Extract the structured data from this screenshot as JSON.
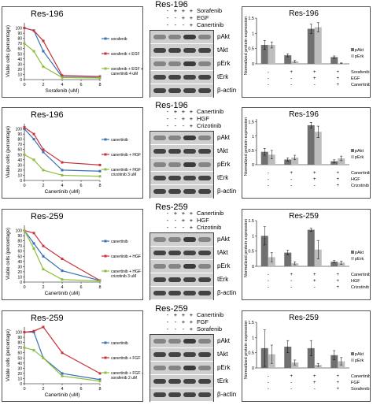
{
  "colors": {
    "blue": "#3a6fb5",
    "red": "#c8323a",
    "green": "#8cbf3f",
    "dark_bar": "#707070",
    "light_bar": "#bdbdbd"
  },
  "panels": [
    {
      "line_chart": {
        "title": "Res-196",
        "ylabel": "Viable cells (percentage)",
        "xlabel": "Sorafenib (uM)",
        "x": [
          0,
          1,
          2,
          4,
          8
        ],
        "yticks": [
          0,
          10,
          20,
          30,
          40,
          50,
          60,
          70,
          80,
          90,
          100
        ],
        "xticks": [
          0,
          2,
          4,
          6,
          8
        ],
        "series": [
          {
            "name": "sorafenib",
            "color": "blue",
            "values": [
              100,
              95,
              55,
              5,
              4
            ]
          },
          {
            "name": "sorafenib + EGF",
            "color": "red",
            "values": [
              100,
              95,
              75,
              8,
              6
            ]
          },
          {
            "name": "sorafenib + EGF + canertinib 4 uM",
            "color": "green",
            "values": [
              70,
              55,
              25,
              4,
              3
            ]
          }
        ]
      },
      "western": {
        "title": "Res-196",
        "conditions": [
          {
            "label": "Sorafenib",
            "signs": [
              "-",
              "+",
              "+",
              "+"
            ]
          },
          {
            "label": "EGF",
            "signs": [
              "-",
              "-",
              "+",
              "+"
            ]
          },
          {
            "label": "Canertinib",
            "signs": [
              "-",
              "-",
              "-",
              "+"
            ]
          }
        ],
        "blots": [
          "pAkt",
          "tAkt",
          "pErk",
          "tErk",
          "β-actin"
        ]
      },
      "bar_chart": {
        "title": "Res-196",
        "ylabel": "Normalized protein expression",
        "yticks": [
          "0",
          "0.5",
          "1",
          "1.5"
        ],
        "ymax": 1.5,
        "legend": [
          "pAkt",
          "pErk"
        ],
        "groups": [
          {
            "pAkt": 0.62,
            "pErk": 0.62,
            "err1": 0.15,
            "err2": 0.1
          },
          {
            "pAkt": 0.28,
            "pErk": 0.08,
            "err1": 0.05,
            "err2": 0.03
          },
          {
            "pAkt": 1.15,
            "pErk": 1.2,
            "err1": 0.15,
            "err2": 0.15
          },
          {
            "pAkt": 0.22,
            "pErk": 0.02,
            "err1": 0.04,
            "err2": 0.01
          }
        ],
        "conditions": [
          {
            "label": "Sorafenib",
            "signs": [
              "-",
              "+",
              "+",
              "+"
            ]
          },
          {
            "label": "EGF",
            "signs": [
              "-",
              "-",
              "+",
              "+"
            ]
          },
          {
            "label": "Canertinib",
            "signs": [
              "-",
              "-",
              "-",
              "+"
            ]
          }
        ]
      }
    },
    {
      "line_chart": {
        "title": "Res-196",
        "ylabel": "Viable cells (percentage)",
        "xlabel": "Canertinib (uM)",
        "x": [
          0,
          1,
          2,
          4,
          8
        ],
        "yticks": [
          0,
          10,
          20,
          30,
          40,
          50,
          60,
          70,
          80,
          90,
          100
        ],
        "xticks": [
          0,
          2,
          4,
          6,
          8
        ],
        "series": [
          {
            "name": "canertinib",
            "color": "blue",
            "values": [
              100,
              80,
              55,
              20,
              18
            ]
          },
          {
            "name": "canertinib + HGF",
            "color": "red",
            "values": [
              103,
              90,
              60,
              35,
              30
            ]
          },
          {
            "name": "canertinib + HGF + crizotinib 3 uM",
            "color": "green",
            "values": [
              50,
              40,
              20,
              10,
              8
            ]
          }
        ]
      },
      "western": {
        "title": "Res-196",
        "conditions": [
          {
            "label": "Canertinib",
            "signs": [
              "-",
              "+",
              "+",
              "+"
            ]
          },
          {
            "label": "HGF",
            "signs": [
              "-",
              "-",
              "+",
              "+"
            ]
          },
          {
            "label": "Crizotinib",
            "signs": [
              "-",
              "-",
              "-",
              "+"
            ]
          }
        ],
        "blots": [
          "pAkt",
          "tAkt",
          "pErk",
          "tErk",
          "β-actin"
        ]
      },
      "bar_chart": {
        "title": "Res-196",
        "ylabel": "Normalized protein expression",
        "yticks": [
          "0",
          "0.5",
          "1",
          "1.5"
        ],
        "ymax": 1.6,
        "legend": [
          "pAkt",
          "pErk"
        ],
        "groups": [
          {
            "pAkt": 0.45,
            "pErk": 0.35,
            "err1": 0.12,
            "err2": 0.15
          },
          {
            "pAkt": 0.18,
            "pErk": 0.25,
            "err1": 0.06,
            "err2": 0.08
          },
          {
            "pAkt": 1.38,
            "pErk": 1.15,
            "err1": 0.1,
            "err2": 0.2
          },
          {
            "pAkt": 0.12,
            "pErk": 0.22,
            "err1": 0.05,
            "err2": 0.08
          }
        ],
        "conditions": [
          {
            "label": "Canertinib",
            "signs": [
              "-",
              "+",
              "+",
              "+"
            ]
          },
          {
            "label": "HGF",
            "signs": [
              "-",
              "-",
              "+",
              "+"
            ]
          },
          {
            "label": "Crizotinib",
            "signs": [
              "-",
              "-",
              "-",
              "+"
            ]
          }
        ]
      }
    },
    {
      "line_chart": {
        "title": "Res-259",
        "ylabel": "Viable cells (percentage)",
        "xlabel": "Canertinib (uM)",
        "x": [
          0,
          1,
          2,
          4,
          8
        ],
        "yticks": [
          0,
          10,
          20,
          30,
          40,
          50,
          60,
          70,
          80,
          90,
          100
        ],
        "xticks": [
          0,
          2,
          4,
          6,
          8
        ],
        "series": [
          {
            "name": "canertinib",
            "color": "blue",
            "values": [
              100,
              75,
              50,
              22,
              3
            ]
          },
          {
            "name": "canertinib + HGF",
            "color": "red",
            "values": [
              100,
              95,
              70,
              45,
              3
            ]
          },
          {
            "name": "canertinib + HGF + crizotinib 3 uM",
            "color": "green",
            "values": [
              100,
              65,
              25,
              5,
              2
            ]
          }
        ]
      },
      "western": {
        "title": "Res-259",
        "conditions": [
          {
            "label": "Canertinib",
            "signs": [
              "-",
              "+",
              "+",
              "+"
            ]
          },
          {
            "label": "HGF",
            "signs": [
              "-",
              "-",
              "+",
              "+"
            ]
          },
          {
            "label": "Crizotinib",
            "signs": [
              "-",
              "-",
              "-",
              "+"
            ]
          }
        ],
        "blots": [
          "pAkt",
          "tAkt",
          "pErk",
          "tErk",
          "β-actin"
        ]
      },
      "bar_chart": {
        "title": "Res-259",
        "ylabel": "Normalized protein expression",
        "yticks": [
          "0",
          "0.5",
          "1",
          "1.5"
        ],
        "ymax": 1.5,
        "legend": [
          "pAkt",
          "pErk"
        ],
        "groups": [
          {
            "pAkt": 1.0,
            "pErk": 0.3,
            "err1": 0.3,
            "err2": 0.15
          },
          {
            "pAkt": 0.45,
            "pErk": 0.1,
            "err1": 0.08,
            "err2": 0.05
          },
          {
            "pAkt": 1.2,
            "pErk": 0.55,
            "err1": 0.05,
            "err2": 0.3
          },
          {
            "pAkt": 0.15,
            "pErk": 0.12,
            "err1": 0.04,
            "err2": 0.05
          }
        ],
        "conditions": [
          {
            "label": "Canertinib",
            "signs": [
              "-",
              "+",
              "+",
              "+"
            ]
          },
          {
            "label": "HGF",
            "signs": [
              "-",
              "-",
              "+",
              "+"
            ]
          },
          {
            "label": "Crizotinib",
            "signs": [
              "-",
              "-",
              "-",
              "+"
            ]
          }
        ]
      }
    },
    {
      "line_chart": {
        "title": "Res-259",
        "ylabel": "Viable cells (percentage)",
        "xlabel": "Canertinib (uM)",
        "x": [
          0,
          1,
          2,
          4,
          8
        ],
        "yticks": [
          0,
          10,
          20,
          30,
          40,
          50,
          60,
          70,
          80,
          90,
          100
        ],
        "xticks": [
          0,
          2,
          4,
          6,
          8
        ],
        "series": [
          {
            "name": "canertinib",
            "color": "blue",
            "values": [
              100,
              100,
              50,
              20,
              8
            ]
          },
          {
            "name": "canertinib + FGF",
            "color": "red",
            "values": [
              100,
              102,
              110,
              60,
              20
            ]
          },
          {
            "name": "canertinib + FGF + sorafenib 2 uM",
            "color": "green",
            "values": [
              70,
              65,
              50,
              15,
              5
            ]
          }
        ]
      },
      "western": {
        "title": "Res-259",
        "conditions": [
          {
            "label": "Canertinib",
            "signs": [
              "-",
              "+",
              "+",
              "+"
            ]
          },
          {
            "label": "FGF",
            "signs": [
              "-",
              "-",
              "+",
              "+"
            ]
          },
          {
            "label": "Sorafenib",
            "signs": [
              "-",
              "-",
              "-",
              "+"
            ]
          }
        ],
        "blots": [
          "pAkt",
          "tAkt",
          "pErk",
          "tErk",
          "β-actin"
        ]
      },
      "bar_chart": {
        "title": "Res-259",
        "ylabel": "Normalized protein expression",
        "yticks": [
          "0",
          "0.5",
          "1",
          "1.5"
        ],
        "ymax": 1.5,
        "legend": [
          "pAkt",
          "pErk"
        ],
        "groups": [
          {
            "pAkt": 0.65,
            "pErk": 0.45,
            "err1": 0.6,
            "err2": 0.3
          },
          {
            "pAkt": 0.7,
            "pErk": 0.18,
            "err1": 0.2,
            "err2": 0.08
          },
          {
            "pAkt": 0.65,
            "pErk": 0.1,
            "err1": 0.25,
            "err2": 0.05
          },
          {
            "pAkt": 0.42,
            "pErk": 0.22,
            "err1": 0.15,
            "err2": 0.12
          }
        ],
        "conditions": [
          {
            "label": "Canertinib",
            "signs": [
              "-",
              "+",
              "+",
              "+"
            ]
          },
          {
            "label": "FGF",
            "signs": [
              "-",
              "-",
              "+",
              "+"
            ]
          },
          {
            "label": "Sorafenib",
            "signs": [
              "-",
              "-",
              "-",
              "+"
            ]
          }
        ]
      }
    }
  ],
  "chart_data": [
    {
      "type": "line",
      "title": "Res-196",
      "xlabel": "Sorafenib (uM)",
      "ylabel": "Viable cells (percentage)",
      "x": [
        0,
        1,
        2,
        4,
        8
      ],
      "ylim": [
        0,
        100
      ],
      "series": [
        {
          "name": "sorafenib",
          "values": [
            100,
            95,
            55,
            5,
            4
          ]
        },
        {
          "name": "sorafenib + EGF",
          "values": [
            100,
            95,
            75,
            8,
            6
          ]
        },
        {
          "name": "sorafenib + EGF + canertinib 4 uM",
          "values": [
            70,
            55,
            25,
            4,
            3
          ]
        }
      ]
    },
    {
      "type": "bar",
      "title": "Res-196",
      "ylabel": "Normalized protein expression",
      "categories": [
        "1",
        "2",
        "3",
        "4"
      ],
      "series": [
        {
          "name": "pAkt",
          "values": [
            0.62,
            0.28,
            1.15,
            0.22
          ]
        },
        {
          "name": "pErk",
          "values": [
            0.62,
            0.08,
            1.2,
            0.02
          ]
        }
      ]
    },
    {
      "type": "line",
      "title": "Res-196",
      "xlabel": "Canertinib (uM)",
      "ylabel": "Viable cells (percentage)",
      "x": [
        0,
        1,
        2,
        4,
        8
      ],
      "ylim": [
        0,
        100
      ],
      "series": [
        {
          "name": "canertinib",
          "values": [
            100,
            80,
            55,
            20,
            18
          ]
        },
        {
          "name": "canertinib + HGF",
          "values": [
            103,
            90,
            60,
            35,
            30
          ]
        },
        {
          "name": "canertinib + HGF + crizotinib 3 uM",
          "values": [
            50,
            40,
            20,
            10,
            8
          ]
        }
      ]
    },
    {
      "type": "bar",
      "title": "Res-196",
      "ylabel": "Normalized protein expression",
      "categories": [
        "1",
        "2",
        "3",
        "4"
      ],
      "series": [
        {
          "name": "pAkt",
          "values": [
            0.45,
            0.18,
            1.38,
            0.12
          ]
        },
        {
          "name": "pErk",
          "values": [
            0.35,
            0.25,
            1.15,
            0.22
          ]
        }
      ]
    },
    {
      "type": "line",
      "title": "Res-259",
      "xlabel": "Canertinib (uM)",
      "ylabel": "Viable cells (percentage)",
      "x": [
        0,
        1,
        2,
        4,
        8
      ],
      "ylim": [
        0,
        100
      ],
      "series": [
        {
          "name": "canertinib",
          "values": [
            100,
            75,
            50,
            22,
            3
          ]
        },
        {
          "name": "canertinib + HGF",
          "values": [
            100,
            95,
            70,
            45,
            3
          ]
        },
        {
          "name": "canertinib + HGF + crizotinib 3 uM",
          "values": [
            100,
            65,
            25,
            5,
            2
          ]
        }
      ]
    },
    {
      "type": "bar",
      "title": "Res-259",
      "ylabel": "Normalized protein expression",
      "categories": [
        "1",
        "2",
        "3",
        "4"
      ],
      "series": [
        {
          "name": "pAkt",
          "values": [
            1.0,
            0.45,
            1.2,
            0.15
          ]
        },
        {
          "name": "pErk",
          "values": [
            0.3,
            0.1,
            0.55,
            0.12
          ]
        }
      ]
    },
    {
      "type": "line",
      "title": "Res-259",
      "xlabel": "Canertinib (uM)",
      "ylabel": "Viable cells (percentage)",
      "x": [
        0,
        1,
        2,
        4,
        8
      ],
      "ylim": [
        0,
        100
      ],
      "series": [
        {
          "name": "canertinib",
          "values": [
            100,
            100,
            50,
            20,
            8
          ]
        },
        {
          "name": "canertinib + FGF",
          "values": [
            100,
            102,
            110,
            60,
            20
          ]
        },
        {
          "name": "canertinib + FGF + sorafenib 2 uM",
          "values": [
            70,
            65,
            50,
            15,
            5
          ]
        }
      ]
    },
    {
      "type": "bar",
      "title": "Res-259",
      "ylabel": "Normalized protein expression",
      "categories": [
        "1",
        "2",
        "3",
        "4"
      ],
      "series": [
        {
          "name": "pAkt",
          "values": [
            0.65,
            0.7,
            0.65,
            0.42
          ]
        },
        {
          "name": "pErk",
          "values": [
            0.45,
            0.18,
            0.1,
            0.22
          ]
        }
      ]
    }
  ]
}
